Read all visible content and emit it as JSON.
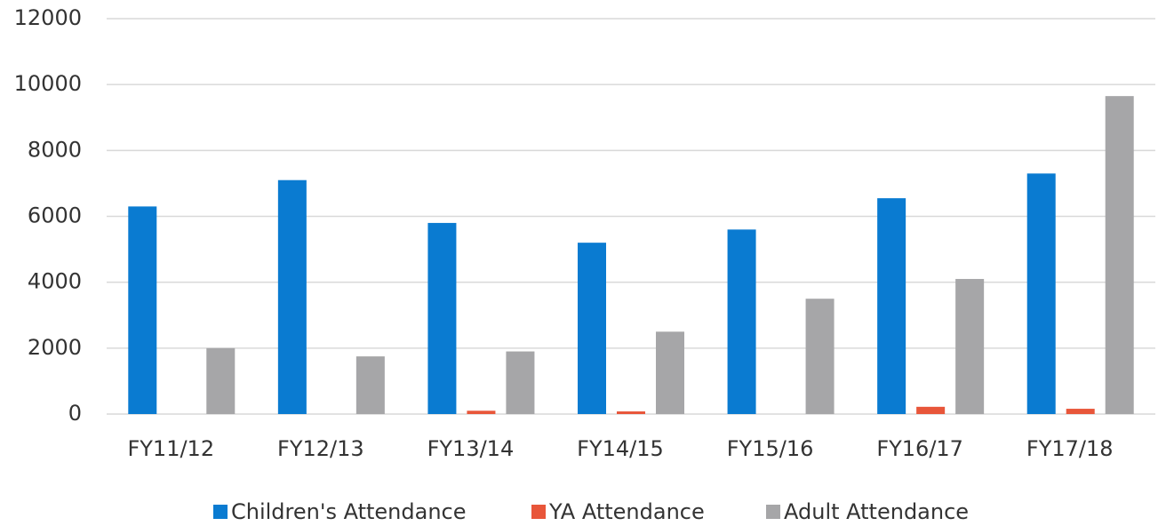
{
  "chart_data": {
    "type": "bar",
    "categories": [
      "FY11/12",
      "FY12/13",
      "FY13/14",
      "FY14/15",
      "FY15/16",
      "FY16/17",
      "FY17/18"
    ],
    "series": [
      {
        "name": "Children's Attendance",
        "color": "#0a7bd1",
        "values": [
          6300,
          7100,
          5800,
          5200,
          5600,
          6550,
          7300
        ]
      },
      {
        "name": "YA Attendance",
        "color": "#e8563a",
        "values": [
          0,
          0,
          100,
          80,
          0,
          220,
          160
        ]
      },
      {
        "name": "Adult Attendance",
        "color": "#a6a6a8",
        "values": [
          2000,
          1750,
          1900,
          2500,
          3500,
          4100,
          9650
        ]
      }
    ],
    "ylim": [
      0,
      12000
    ],
    "yticks": [
      0,
      2000,
      4000,
      6000,
      8000,
      10000,
      12000
    ],
    "grid": true,
    "legend": "bottom"
  }
}
